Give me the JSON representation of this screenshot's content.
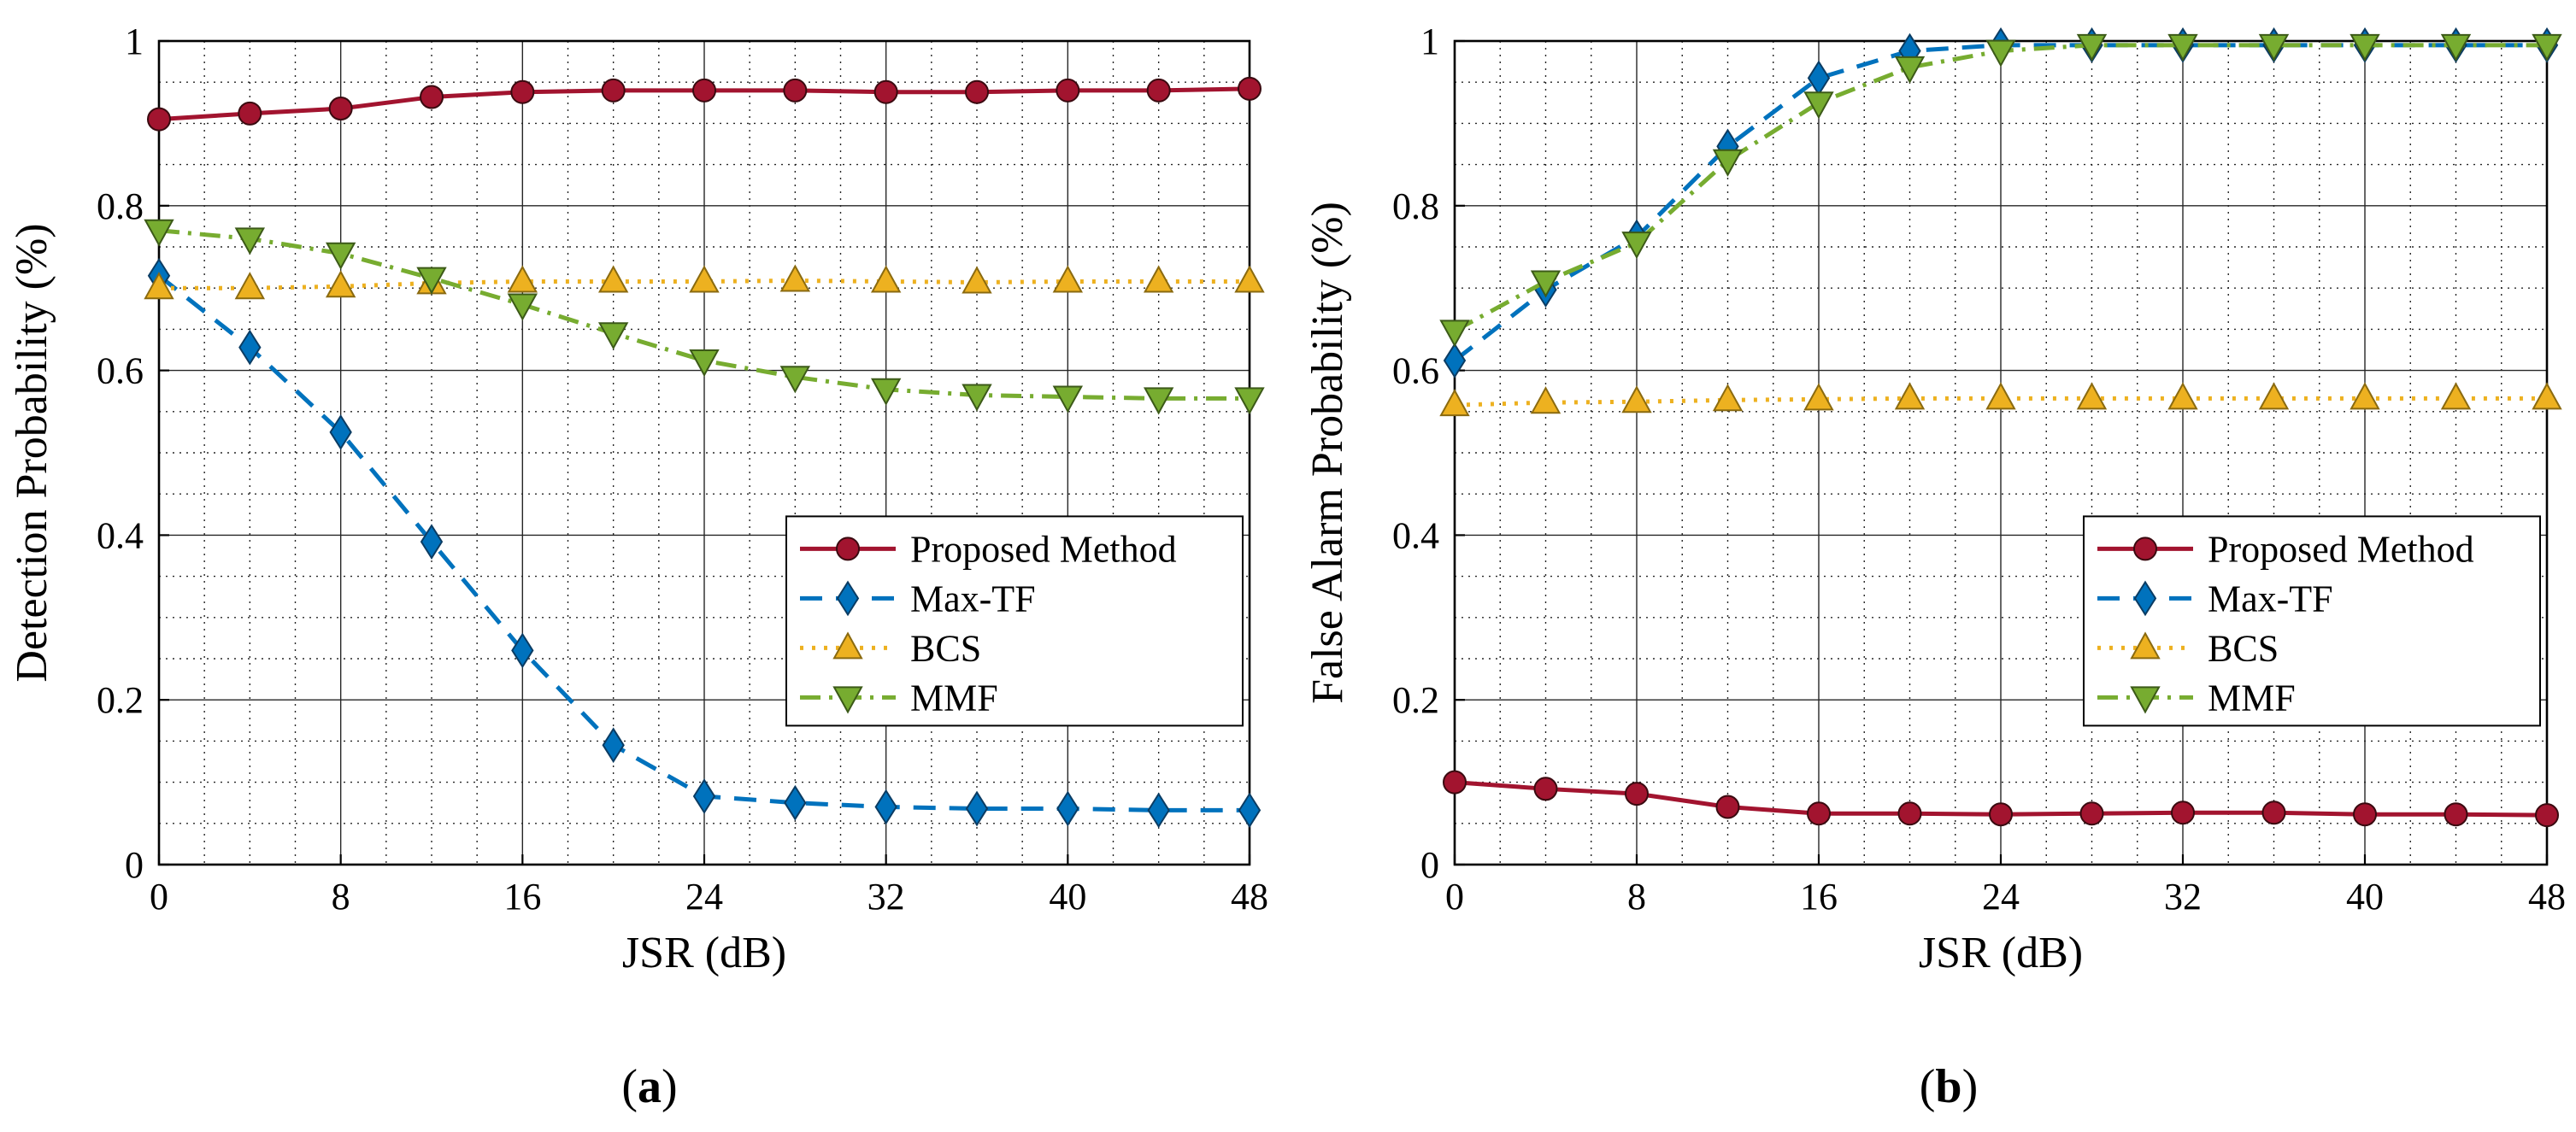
{
  "colors": {
    "proposed": "#A2142F",
    "maxtf": "#0072BD",
    "bcs": "#EDB120",
    "mmf": "#77AC30"
  },
  "chart_data": [
    {
      "type": "line",
      "panel_label": "(a)",
      "panel_label_parts": [
        "(",
        "a",
        ")"
      ],
      "xlabel": "JSR (dB)",
      "ylabel": "Detection Probability (%)",
      "xlim": [
        0,
        48
      ],
      "ylim": [
        0,
        1
      ],
      "xticks": [
        0,
        8,
        16,
        24,
        32,
        40,
        48
      ],
      "yticks": [
        0,
        0.2,
        0.4,
        0.6,
        0.8,
        1
      ],
      "xtick_labels": [
        "0",
        "8",
        "16",
        "24",
        "32",
        "40",
        "48"
      ],
      "ytick_labels": [
        "0",
        "0.2",
        "0.4",
        "0.6",
        "0.8",
        "1"
      ],
      "grid": true,
      "legend_position": "lower-right",
      "x": [
        0,
        4,
        8,
        12,
        16,
        20,
        24,
        28,
        32,
        36,
        40,
        44,
        48
      ],
      "series": [
        {
          "name": "Proposed Method",
          "key": "proposed",
          "marker": "circle",
          "dash": "solid",
          "values": [
            0.905,
            0.912,
            0.918,
            0.932,
            0.938,
            0.94,
            0.94,
            0.94,
            0.938,
            0.938,
            0.94,
            0.94,
            0.942
          ]
        },
        {
          "name": "Max-TF",
          "key": "maxtf",
          "marker": "diamond",
          "dash": "dashed",
          "values": [
            0.715,
            0.628,
            0.525,
            0.392,
            0.26,
            0.145,
            0.083,
            0.075,
            0.07,
            0.068,
            0.068,
            0.066,
            0.066
          ]
        },
        {
          "name": "BCS",
          "key": "bcs",
          "marker": "triangle-up",
          "dash": "dotted",
          "values": [
            0.7,
            0.7,
            0.702,
            0.706,
            0.708,
            0.708,
            0.708,
            0.709,
            0.708,
            0.707,
            0.708,
            0.708,
            0.708
          ]
        },
        {
          "name": "MMF",
          "key": "mmf",
          "marker": "triangle-down",
          "dash": "dashdot",
          "values": [
            0.77,
            0.76,
            0.742,
            0.712,
            0.68,
            0.645,
            0.612,
            0.592,
            0.577,
            0.57,
            0.568,
            0.566,
            0.566
          ]
        }
      ]
    },
    {
      "type": "line",
      "panel_label": "(b)",
      "panel_label_parts": [
        "(",
        "b",
        ")"
      ],
      "xlabel": "JSR (dB)",
      "ylabel": "False Alarm Probability (%)",
      "xlim": [
        0,
        48
      ],
      "ylim": [
        0,
        1
      ],
      "xticks": [
        0,
        8,
        16,
        24,
        32,
        40,
        48
      ],
      "yticks": [
        0,
        0.2,
        0.4,
        0.6,
        0.8,
        1
      ],
      "xtick_labels": [
        "0",
        "8",
        "16",
        "24",
        "32",
        "40",
        "48"
      ],
      "ytick_labels": [
        "0",
        "0.2",
        "0.4",
        "0.6",
        "0.8",
        "1"
      ],
      "grid": true,
      "legend_position": "lower-right",
      "x": [
        0,
        4,
        8,
        12,
        16,
        20,
        24,
        28,
        32,
        36,
        40,
        44,
        48
      ],
      "series": [
        {
          "name": "Proposed Method",
          "key": "proposed",
          "marker": "circle",
          "dash": "solid",
          "values": [
            0.1,
            0.092,
            0.086,
            0.07,
            0.062,
            0.062,
            0.061,
            0.062,
            0.063,
            0.063,
            0.061,
            0.061,
            0.06
          ]
        },
        {
          "name": "Max-TF",
          "key": "maxtf",
          "marker": "diamond",
          "dash": "dashed",
          "values": [
            0.612,
            0.698,
            0.762,
            0.872,
            0.955,
            0.988,
            0.995,
            0.995,
            0.995,
            0.995,
            0.995,
            0.995,
            0.995
          ]
        },
        {
          "name": "BCS",
          "key": "bcs",
          "marker": "triangle-up",
          "dash": "dotted",
          "values": [
            0.558,
            0.561,
            0.562,
            0.564,
            0.565,
            0.566,
            0.566,
            0.566,
            0.566,
            0.566,
            0.566,
            0.566,
            0.566
          ]
        },
        {
          "name": "MMF",
          "key": "mmf",
          "marker": "triangle-down",
          "dash": "dashdot",
          "values": [
            0.648,
            0.708,
            0.755,
            0.855,
            0.925,
            0.968,
            0.988,
            0.995,
            0.995,
            0.995,
            0.995,
            0.995,
            0.995
          ]
        }
      ]
    }
  ]
}
